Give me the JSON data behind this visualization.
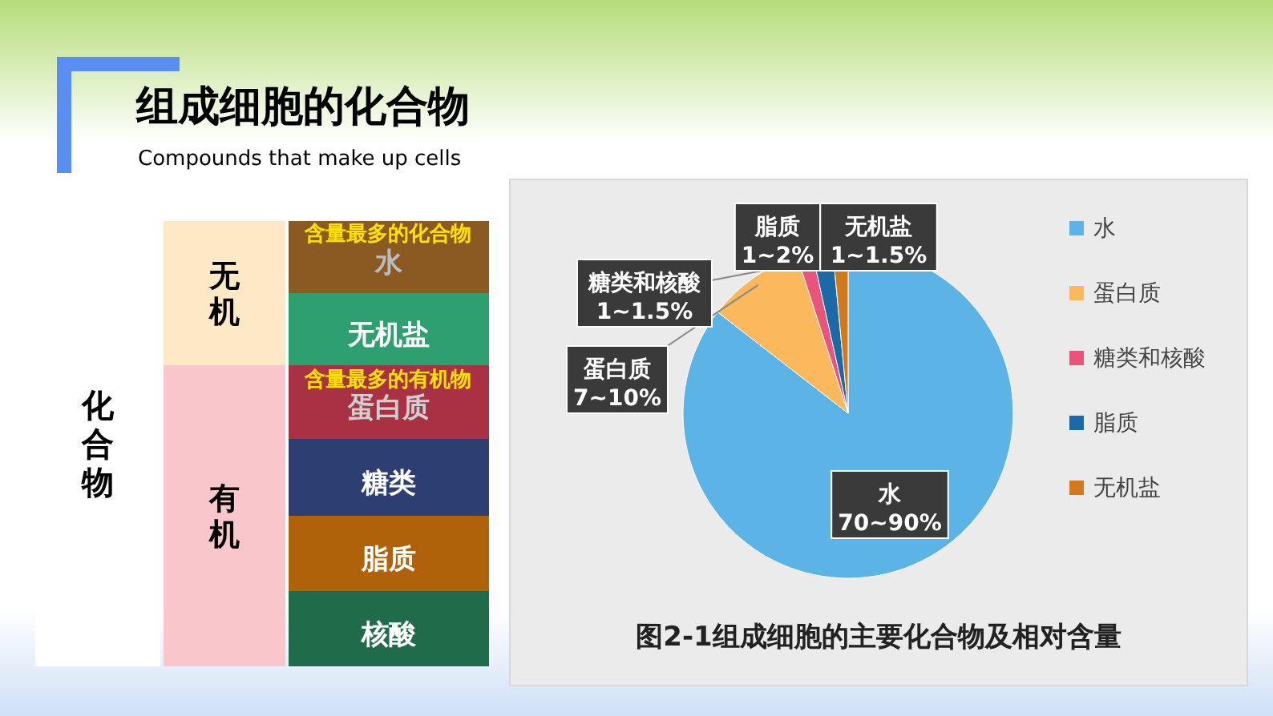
{
  "chart_data": [
    {
      "type": "other",
      "title": "组成细胞的化合物",
      "subtitle": "Compounds that make up cells",
      "annotations": [
        "化合物",
        "无机",
        "有机",
        "水",
        "无机盐",
        "蛋白质",
        "糖类",
        "脂质",
        "核酸",
        "含量最多的化合物",
        "含量最多的有机物"
      ]
    },
    {
      "type": "pie",
      "categories": [
        "水",
        "蛋白质",
        "糖类和核酸",
        "脂质",
        "无机盐"
      ],
      "values": [
        85.5,
        9.5,
        1.5,
        2,
        1.5
      ],
      "colors": [
        "#5bb4e5",
        "#fbb85c",
        "#e8547a",
        "#1a6aa8",
        "#d07a1c"
      ],
      "legend": "right",
      "annotations": [
        "70~90%",
        "7~10%",
        "1~1.5%",
        "1~2%",
        "1~1.5%",
        "图2-1组成细胞的主要化合物及相对含量"
      ]
    }
  ]
}
